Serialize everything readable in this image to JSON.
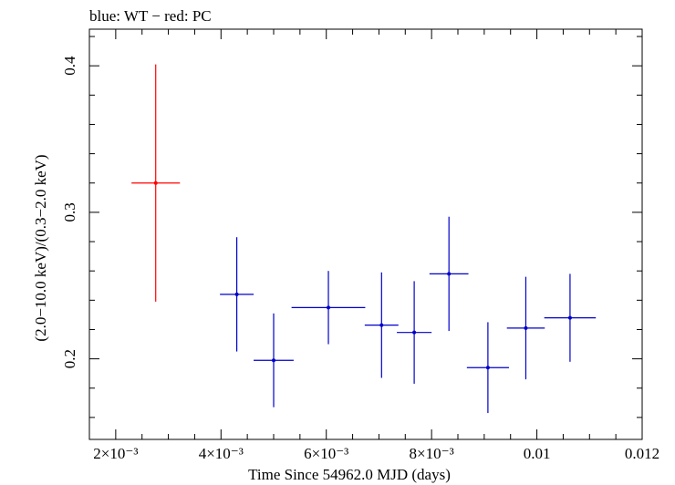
{
  "chart_data": {
    "type": "scatter",
    "title": "blue: WT − red: PC",
    "xlabel": "Time Since 54962.0 MJD (days)",
    "ylabel": "(2.0−10.0 keV)/(0.3−2.0 keV)",
    "xlim": [
      0.0015,
      0.012
    ],
    "ylim": [
      0.145,
      0.425
    ],
    "x_ticks": [
      {
        "value": 0.002,
        "label": "2×10⁻³"
      },
      {
        "value": 0.004,
        "label": "4×10⁻³"
      },
      {
        "value": 0.006,
        "label": "6×10⁻³"
      },
      {
        "value": 0.008,
        "label": "8×10⁻³"
      },
      {
        "value": 0.01,
        "label": "0.01"
      },
      {
        "value": 0.012,
        "label": "0.012"
      }
    ],
    "y_ticks": [
      {
        "value": 0.2,
        "label": "0.2"
      },
      {
        "value": 0.3,
        "label": "0.3"
      },
      {
        "value": 0.4,
        "label": "0.4"
      }
    ],
    "grid": false,
    "series": [
      {
        "name": "PC",
        "color": "#ff0000",
        "points": [
          {
            "x": 0.00276,
            "xerr": 0.00046,
            "y": 0.32,
            "yerr": 0.081
          }
        ]
      },
      {
        "name": "WT",
        "color": "#0000cc",
        "points": [
          {
            "x": 0.0043,
            "xerr": 0.00032,
            "y": 0.244,
            "yerr": 0.039
          },
          {
            "x": 0.005,
            "xerr": 0.00038,
            "y": 0.199,
            "yerr": 0.032
          },
          {
            "x": 0.00604,
            "xerr": 0.0007,
            "y": 0.235,
            "yerr": 0.025
          },
          {
            "x": 0.00705,
            "xerr": 0.00032,
            "y": 0.223,
            "yerr": 0.036
          },
          {
            "x": 0.00767,
            "xerr": 0.00033,
            "y": 0.218,
            "yerr": 0.035
          },
          {
            "x": 0.00833,
            "xerr": 0.00037,
            "y": 0.258,
            "yerr": 0.039
          },
          {
            "x": 0.00907,
            "xerr": 0.0004,
            "y": 0.194,
            "yerr": 0.031
          },
          {
            "x": 0.00979,
            "xerr": 0.00036,
            "y": 0.221,
            "yerr": 0.035
          },
          {
            "x": 0.01063,
            "xerr": 0.00049,
            "y": 0.228,
            "yerr": 0.03
          }
        ]
      }
    ]
  }
}
